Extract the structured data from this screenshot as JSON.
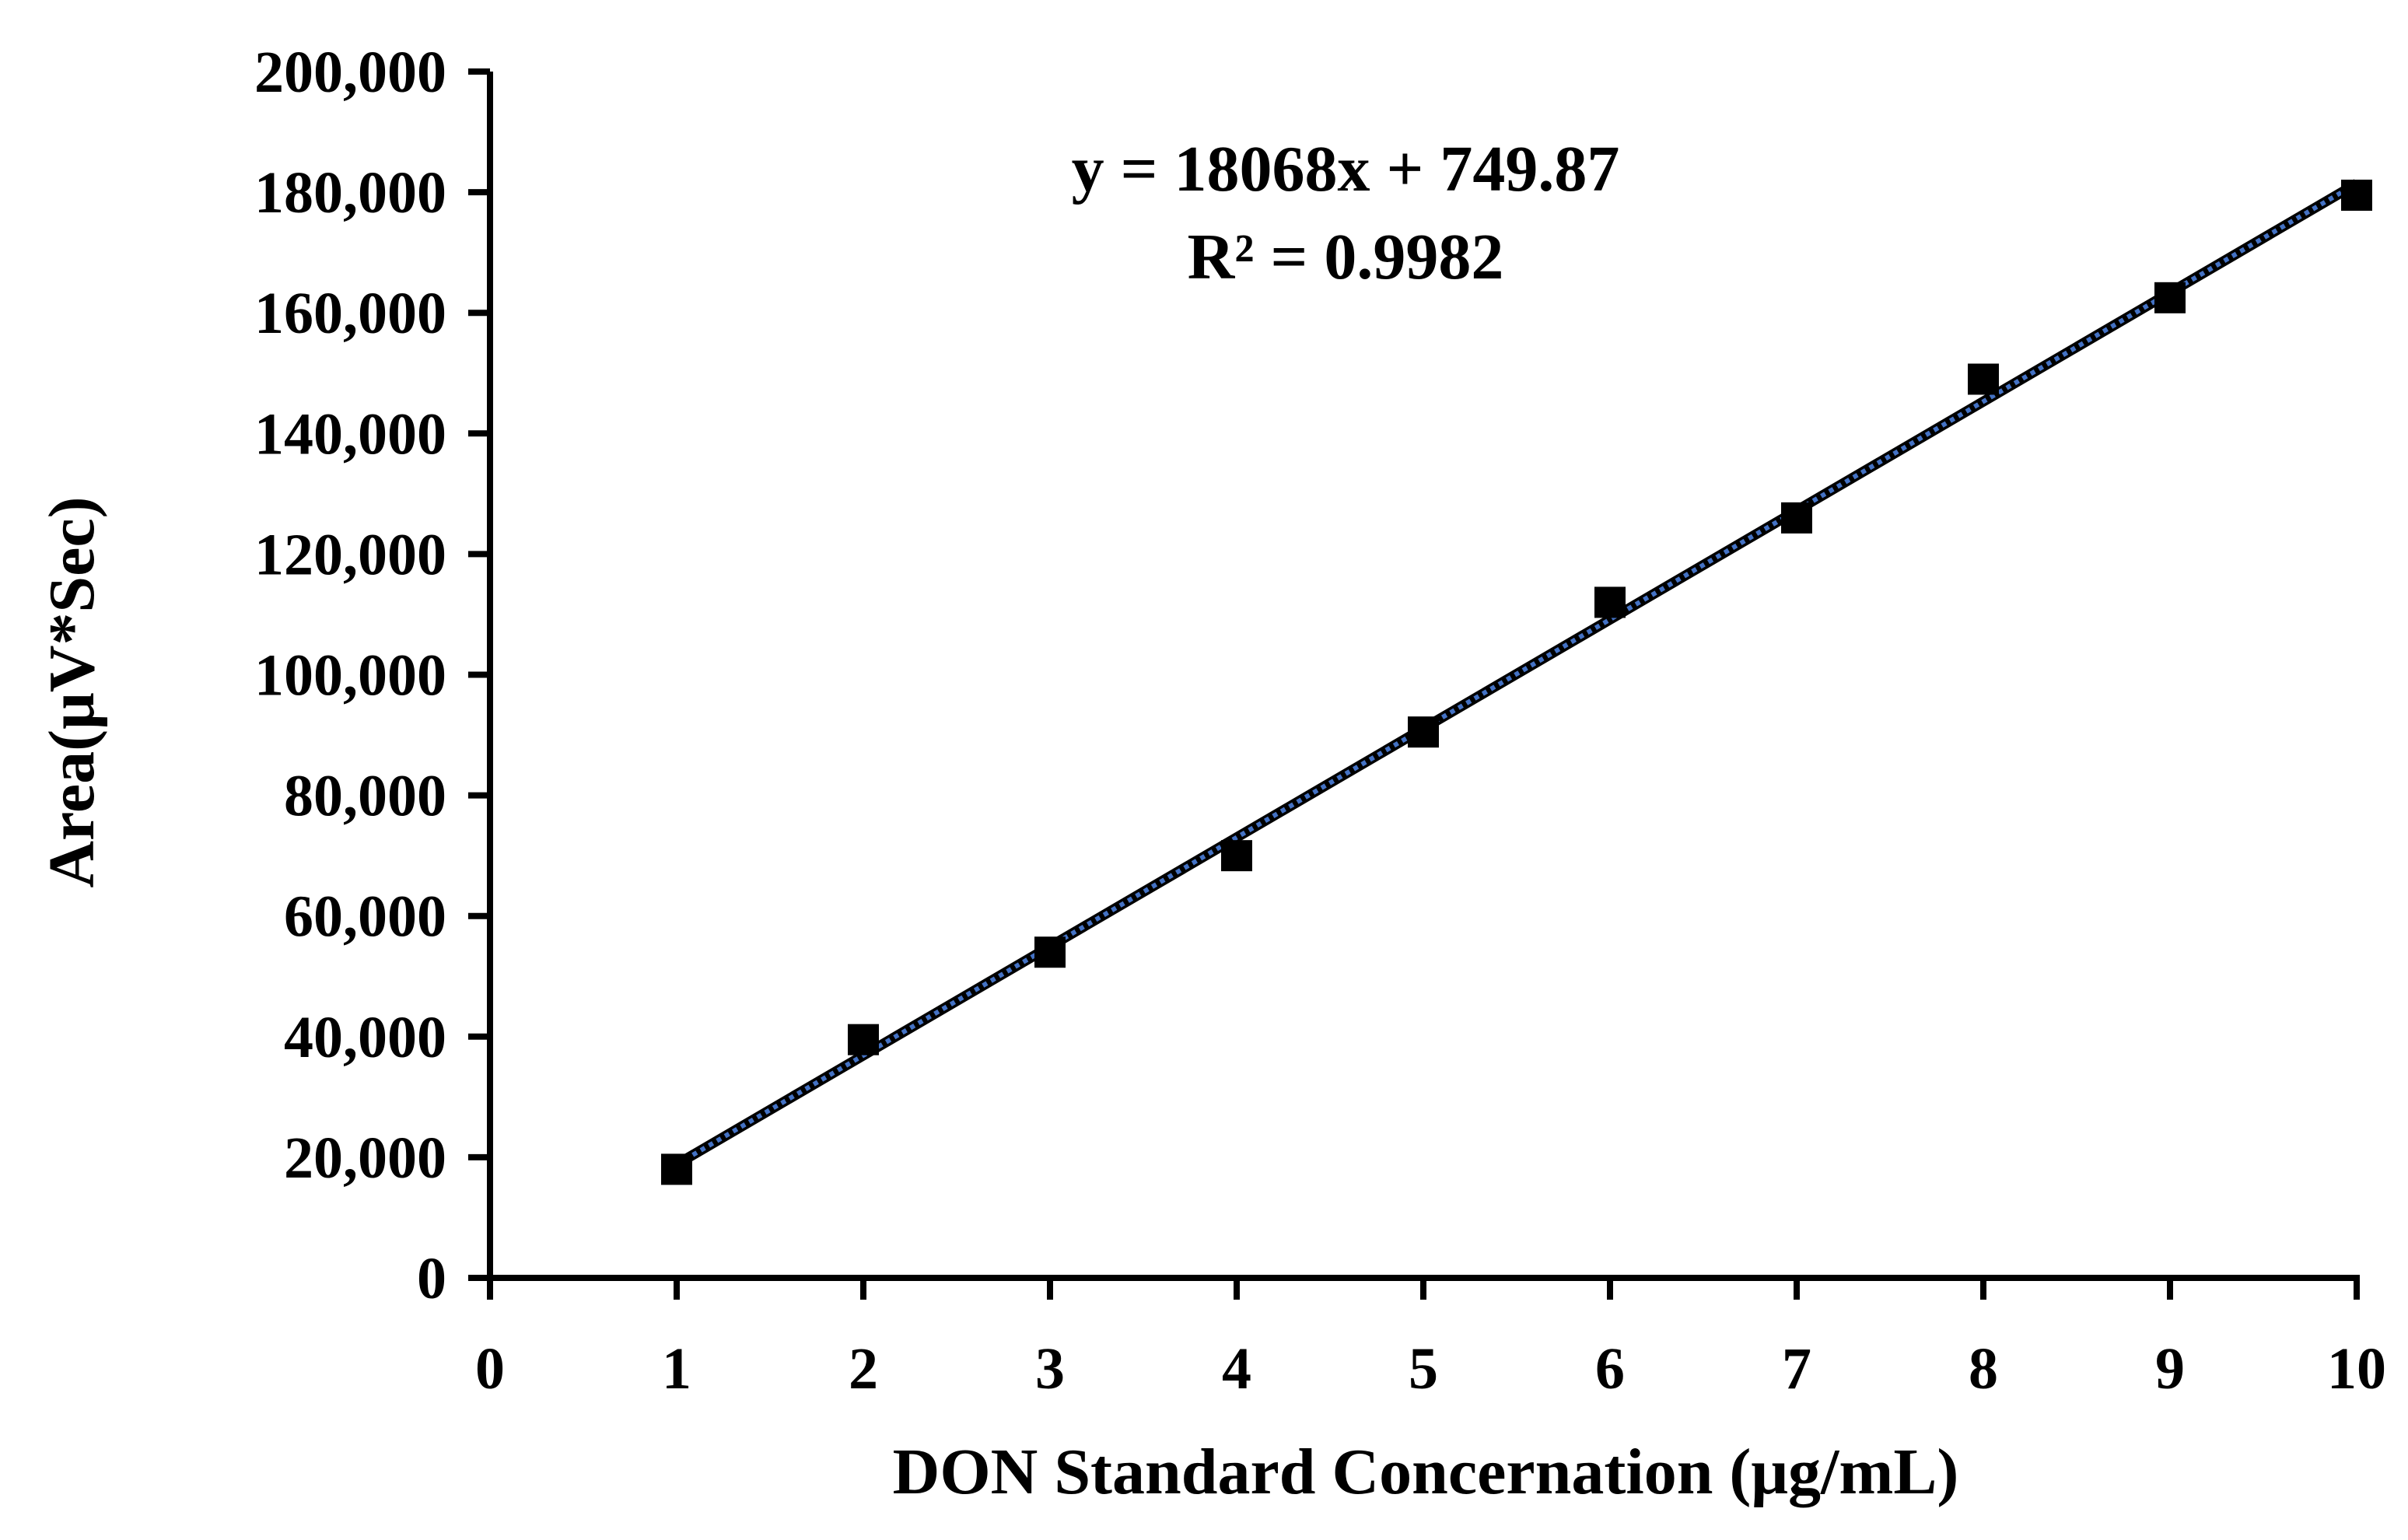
{
  "chart_data": {
    "type": "scatter",
    "xlabel": "DON Standard Concernation (μg/mL)",
    "ylabel": "Area(μV*Sec)",
    "xlim": [
      0,
      10
    ],
    "ylim": [
      0,
      200000
    ],
    "x_ticks": [
      "0",
      "1",
      "2",
      "3",
      "4",
      "5",
      "6",
      "7",
      "8",
      "9",
      "10"
    ],
    "y_ticks": [
      "0",
      "20,000",
      "40,000",
      "60,000",
      "80,000",
      "100,000",
      "120,000",
      "140,000",
      "160,000",
      "180,000",
      "200,000"
    ],
    "grid": false,
    "series": [
      {
        "marker": "square",
        "color": "#000000",
        "x": [
          1,
          2,
          3,
          4,
          5,
          6,
          7,
          8,
          9,
          10
        ],
        "y": [
          18000,
          39500,
          54000,
          70000,
          90500,
          112000,
          126000,
          149000,
          162500,
          179500
        ]
      }
    ],
    "trendline": {
      "slope": 18068,
      "intercept": 749.87,
      "x_range": [
        1,
        10
      ],
      "color": "#4472C4",
      "style": "dotted",
      "equation": "y = 18068x + 749.87",
      "r_squared": "R² = 0.9982"
    }
  }
}
